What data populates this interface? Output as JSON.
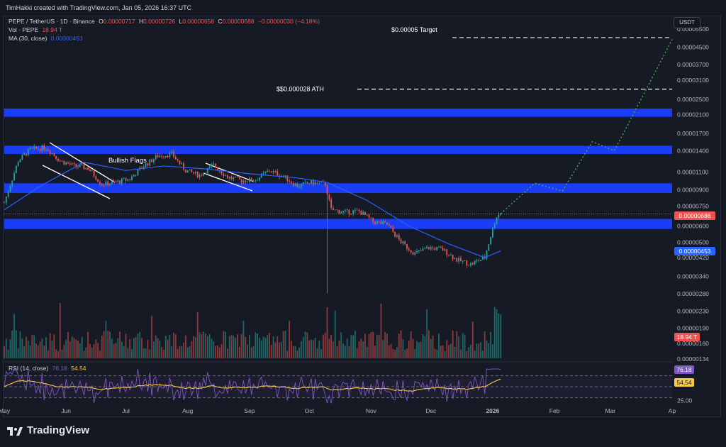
{
  "header": {
    "credit": "TimHakki created with TradingView.com, Jan 05, 2026 16:37 UTC"
  },
  "legend": {
    "symbol": "PEPE / TetherUS · 1D · Binance",
    "open_label": "O",
    "open": "0.00000717",
    "high_label": "H",
    "high": "0.00000726",
    "low_label": "L",
    "low": "0.00000658",
    "close_label": "C",
    "close": "0.00000688",
    "change": "−0.00000030 (−4.18%)",
    "vol_label": "Vol · PEPE",
    "vol_value": "18.94 T",
    "ma_label": "MA (30, close)",
    "ma_value": "0.00000453",
    "rsi_label": "RSI (14, close)",
    "rsi_value": "76.18",
    "rsi_ma_value": "54.54"
  },
  "currency_badge": "USDT",
  "annotations": {
    "target": "$0.00005 Target",
    "ath": "$$0.000028 ATH",
    "flags": "Bullish Flags"
  },
  "price_tags": {
    "last": "0.00000688",
    "ma": "0.00000453",
    "volume": "18.94 T",
    "rsi": "76.18",
    "rsi_ma": "54.54"
  },
  "colors": {
    "up": "#26a69a",
    "down": "#ef5350",
    "zone": "#1a3df5",
    "ma": "#2962ff",
    "rsi": "#7e57c2",
    "rsi_ma": "#f7c948",
    "projection": "#4caf50"
  },
  "footer": {
    "brand": "TradingView"
  },
  "chart_data": {
    "type": "candlestick",
    "price_axis": {
      "scale": "log",
      "ticks": [
        "0.00005500",
        "0.00004500",
        "0.00003700",
        "0.00003100",
        "0.00002500",
        "0.00002100",
        "0.00001700",
        "0.00001400",
        "0.00001100",
        "0.00000900",
        "0.00000750",
        "0.00000600",
        "0.00000500",
        "0.00000420",
        "0.00000340",
        "0.00000280",
        "0.00000230",
        "0.00000190",
        "0.00000160",
        "0.00000134"
      ]
    },
    "x_axis": {
      "ticks": [
        "May",
        "Jun",
        "Jul",
        "Aug",
        "Sep",
        "Oct",
        "Nov",
        "Dec",
        "2026",
        "Feb",
        "Mar",
        "Ap"
      ]
    },
    "rsi_axis": {
      "ticks": [
        "25.00"
      ]
    },
    "zones": [
      {
        "low": 2.05e-05,
        "high": 2.25e-05
      },
      {
        "low": 1.35e-05,
        "high": 1.48e-05
      },
      {
        "low": 8.7e-06,
        "high": 9.7e-06
      },
      {
        "low": 5.8e-06,
        "high": 6.5e-06
      }
    ],
    "levels": [
      {
        "label": "target",
        "value": 5e-05
      },
      {
        "label": "ath",
        "value": 2.8e-05
      }
    ],
    "projection": [
      {
        "date": "2026-01-05",
        "value": 6.88e-06
      },
      {
        "date": "2026-01-22",
        "value": 9.7e-06
      },
      {
        "date": "2026-02-05",
        "value": 8.9e-06
      },
      {
        "date": "2026-02-20",
        "value": 1.55e-05
      },
      {
        "date": "2026-03-03",
        "value": 1.4e-05
      },
      {
        "date": "2026-04-01",
        "value": 4.9e-05
      }
    ],
    "series": [
      {
        "name": "PEPE / TetherUS",
        "points": [
          [
            "2025-05-01",
            7.8e-06
          ],
          [
            "2025-05-08",
            1.25e-05
          ],
          [
            "2025-05-14",
            1.42e-05
          ],
          [
            "2025-05-22",
            1.45e-05
          ],
          [
            "2025-05-29",
            1.25e-05
          ],
          [
            "2025-06-05",
            1.18e-05
          ],
          [
            "2025-06-12",
            1.15e-05
          ],
          [
            "2025-06-19",
            9.6e-06
          ],
          [
            "2025-06-26",
            9.8e-06
          ],
          [
            "2025-07-03",
            1.02e-05
          ],
          [
            "2025-07-10",
            1.18e-05
          ],
          [
            "2025-07-17",
            1.32e-05
          ],
          [
            "2025-07-24",
            1.35e-05
          ],
          [
            "2025-07-31",
            1.12e-05
          ],
          [
            "2025-08-07",
            1.06e-05
          ],
          [
            "2025-08-14",
            1.19e-05
          ],
          [
            "2025-08-21",
            1.04e-05
          ],
          [
            "2025-08-28",
            1e-05
          ],
          [
            "2025-09-04",
            1.01e-05
          ],
          [
            "2025-09-11",
            1.12e-05
          ],
          [
            "2025-09-18",
            1.05e-05
          ],
          [
            "2025-09-25",
            9.4e-06
          ],
          [
            "2025-10-02",
            9.8e-06
          ],
          [
            "2025-10-09",
            9.6e-06
          ],
          [
            "2025-10-12",
            7.2e-06
          ],
          [
            "2025-10-19",
            7e-06
          ],
          [
            "2025-10-26",
            7.1e-06
          ],
          [
            "2025-11-02",
            6.3e-06
          ],
          [
            "2025-11-09",
            6.1e-06
          ],
          [
            "2025-11-16",
            5e-06
          ],
          [
            "2025-11-23",
            4.4e-06
          ],
          [
            "2025-11-30",
            4.7e-06
          ],
          [
            "2025-12-07",
            4.6e-06
          ],
          [
            "2025-12-14",
            4.1e-06
          ],
          [
            "2025-12-21",
            3.9e-06
          ],
          [
            "2025-12-28",
            4.2e-06
          ],
          [
            "2026-01-02",
            6.3e-06
          ],
          [
            "2026-01-05",
            6.88e-06
          ]
        ]
      },
      {
        "name": "MA (30, close)",
        "points": [
          [
            "2025-05-01",
            7.2e-06
          ],
          [
            "2025-05-20",
            9.5e-06
          ],
          [
            "2025-06-10",
            1.23e-05
          ],
          [
            "2025-07-01",
            1.12e-05
          ],
          [
            "2025-07-20",
            1.18e-05
          ],
          [
            "2025-08-10",
            1.14e-05
          ],
          [
            "2025-09-01",
            1.08e-05
          ],
          [
            "2025-09-25",
            1.03e-05
          ],
          [
            "2025-10-10",
            9.8e-06
          ],
          [
            "2025-10-30",
            8e-06
          ],
          [
            "2025-11-20",
            6e-06
          ],
          [
            "2025-12-10",
            4.9e-06
          ],
          [
            "2025-12-28",
            4.2e-06
          ],
          [
            "2026-01-05",
            4.53e-06
          ]
        ]
      }
    ]
  }
}
